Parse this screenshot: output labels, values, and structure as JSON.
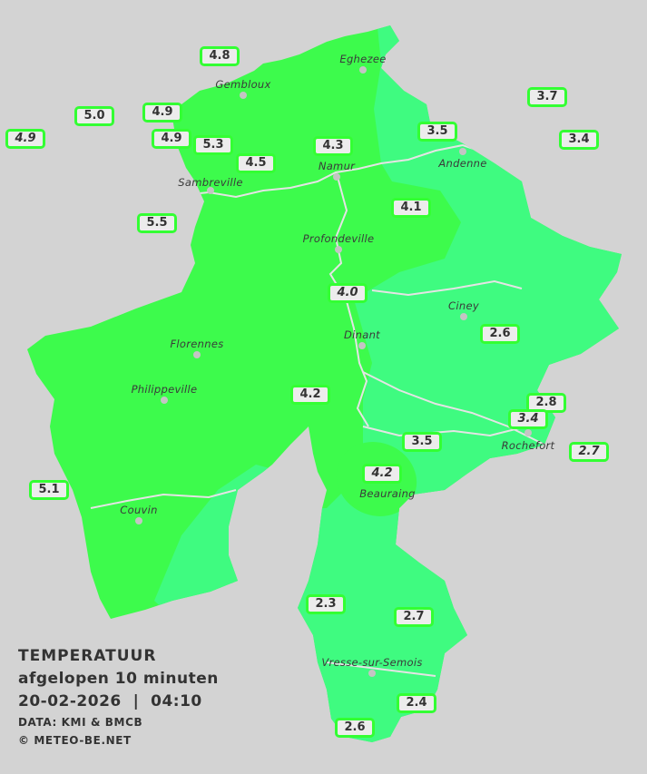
{
  "legend": {
    "title": "TEMPERATUUR",
    "subtitle": "afgelopen 10 minuten",
    "datetime": "20-02-2026  |  04:10",
    "source": "DATA: KMI & BMCB",
    "copyright": "© METEO-BE.NET"
  },
  "colors": {
    "background": "#d3d3d3",
    "warm_zone": "#3dfb4c",
    "cool_zone": "#3ffb80",
    "badge_border": "#33ff33"
  },
  "cities": [
    "Eghezee",
    "Gembloux",
    "Sambreville",
    "Namur",
    "Andenne",
    "Profondeville",
    "Ciney",
    "Dinant",
    "Florennes",
    "Philippeville",
    "Couvin",
    "Vresse-sur-Semois",
    "Rochefort",
    "Beauraing"
  ],
  "stations": [
    {
      "value": "4.8",
      "italic": false
    },
    {
      "value": "5.0",
      "italic": false
    },
    {
      "value": "4.9",
      "italic": false
    },
    {
      "value": "4.9",
      "italic": true
    },
    {
      "value": "4.9",
      "italic": false
    },
    {
      "value": "5.3",
      "italic": false
    },
    {
      "value": "4.5",
      "italic": false
    },
    {
      "value": "4.3",
      "italic": false
    },
    {
      "value": "3.5",
      "italic": false
    },
    {
      "value": "3.7",
      "italic": false
    },
    {
      "value": "3.4",
      "italic": false
    },
    {
      "value": "5.5",
      "italic": false
    },
    {
      "value": "4.1",
      "italic": false
    },
    {
      "value": "4.0",
      "italic": true
    },
    {
      "value": "2.6",
      "italic": false
    },
    {
      "value": "4.2",
      "italic": false
    },
    {
      "value": "2.8",
      "italic": false
    },
    {
      "value": "3.4",
      "italic": true
    },
    {
      "value": "2.7",
      "italic": true
    },
    {
      "value": "3.5",
      "italic": false
    },
    {
      "value": "4.2",
      "italic": true
    },
    {
      "value": "5.1",
      "italic": false
    },
    {
      "value": "2.3",
      "italic": false
    },
    {
      "value": "2.7",
      "italic": false
    },
    {
      "value": "2.4",
      "italic": false
    },
    {
      "value": "2.6",
      "italic": false
    }
  ]
}
